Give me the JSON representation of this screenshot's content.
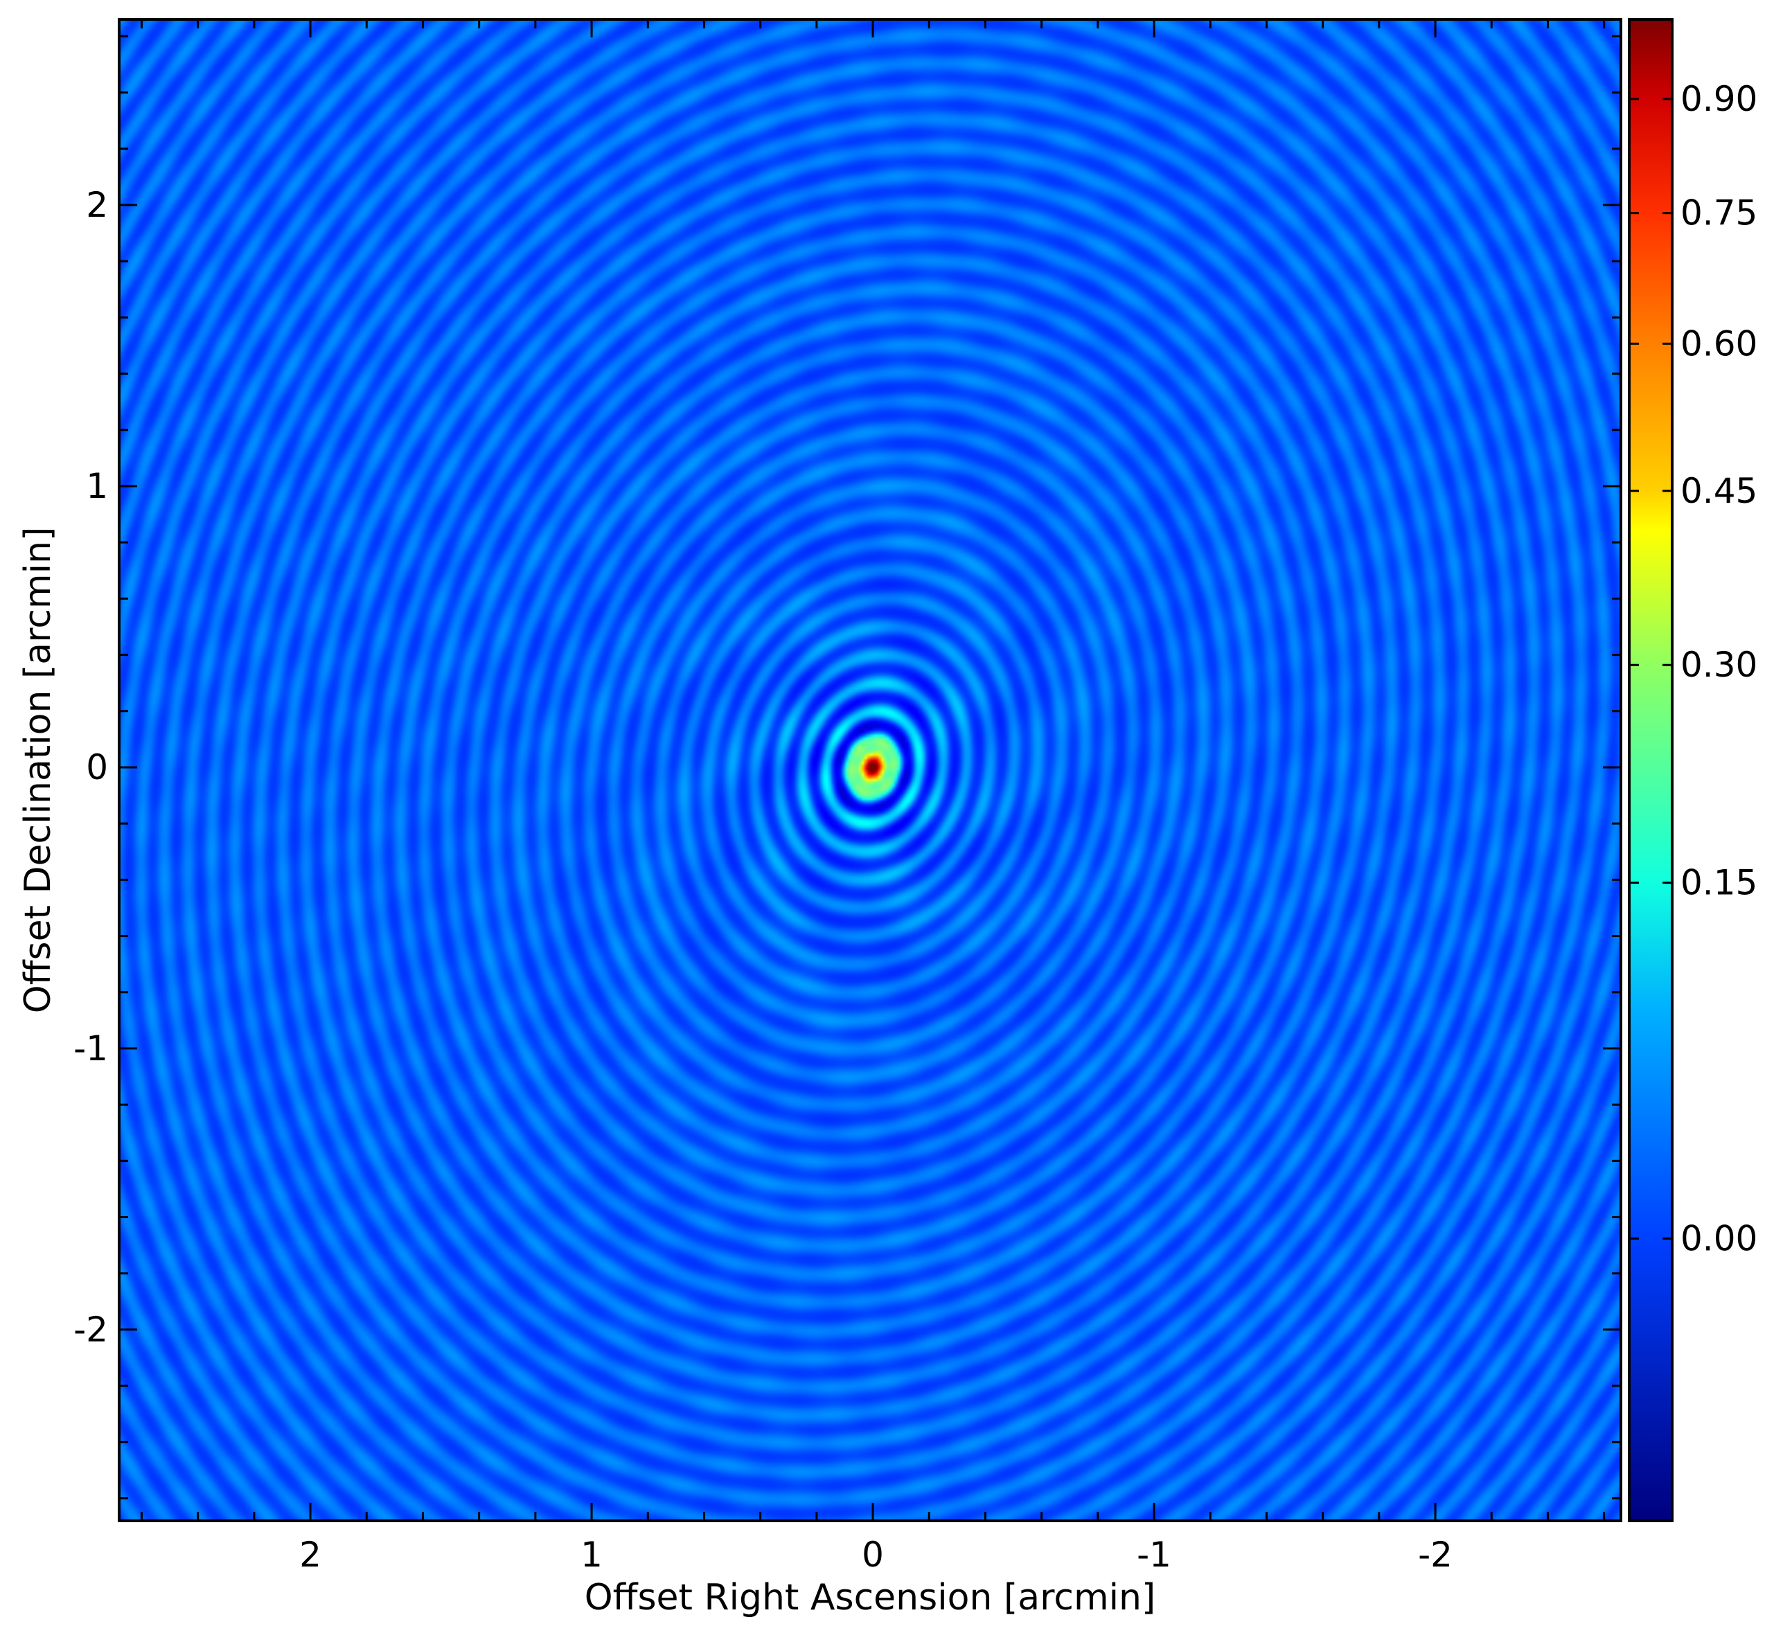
{
  "chart_data": {
    "type": "heatmap",
    "xlabel": "Offset Right Ascension [arcmin]",
    "ylabel": "Offset Declination [arcmin]",
    "xlim": [
      2.68,
      -2.66
    ],
    "ylim": [
      -2.68,
      2.66
    ],
    "x_ticks": [
      2,
      1,
      0,
      -1,
      -2
    ],
    "x_tick_labels": [
      "2",
      "1",
      "0",
      "-1",
      "-2"
    ],
    "y_ticks": [
      2,
      1,
      0,
      -1,
      -2
    ],
    "y_tick_labels": [
      "2",
      "1",
      "0",
      "-1",
      "-2"
    ],
    "x_minor_step": 0.2,
    "y_minor_step": 0.2,
    "colormap": "jet",
    "peak": {
      "x": 0.0,
      "y": 0.0,
      "value": 0.97
    },
    "background_value": 0.02,
    "colorbar": {
      "vmin": -0.18,
      "vmax": 0.97,
      "scale": "nonlinear",
      "ticks": [
        0.9,
        0.75,
        0.6,
        0.45,
        0.3,
        0.15,
        0.0
      ],
      "tick_labels": [
        "0.90",
        "0.75",
        "0.60",
        "0.45",
        "0.30",
        "0.15",
        "0.00"
      ],
      "tick_fractions": [
        0.947,
        0.871,
        0.784,
        0.686,
        0.57,
        0.425,
        0.188
      ]
    }
  }
}
